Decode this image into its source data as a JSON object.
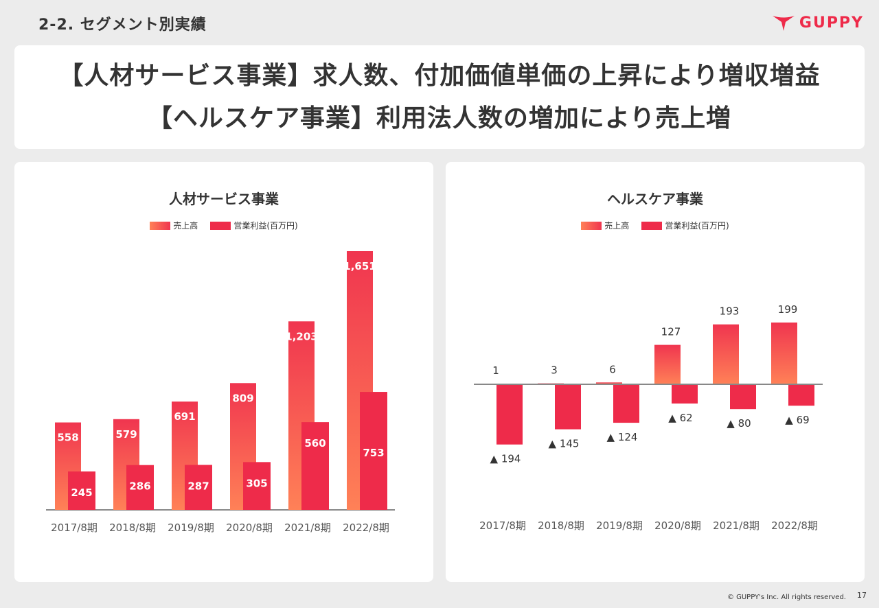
{
  "header": {
    "section_title": "2-2. セグメント別実績",
    "logo_text": "GUPPY"
  },
  "headline": {
    "line1": "【人材サービス事業】求人数、付加価値単価の上昇により増収増益",
    "line2": "【ヘルスケア事業】利用法人数の増加により売上増"
  },
  "colors": {
    "revenue_top": "#f0354f",
    "revenue_bottom": "#ff8157",
    "profit": "#ee2b4a",
    "accent": "#ee2b4a"
  },
  "legend": {
    "revenue": "売上高",
    "profit": "営業利益(百万円)"
  },
  "chart_data": [
    {
      "type": "bar",
      "title": "人材サービス事業",
      "categories": [
        "2017/8期",
        "2018/8期",
        "2019/8期",
        "2020/8期",
        "2021/8期",
        "2022/8期"
      ],
      "series": [
        {
          "name": "売上高",
          "values": [
            558,
            579,
            691,
            809,
            1203,
            1651
          ],
          "labels": [
            "558",
            "579",
            "691",
            "809",
            "1,203",
            "1,651"
          ]
        },
        {
          "name": "営業利益(百万円)",
          "values": [
            245,
            286,
            287,
            305,
            560,
            753
          ],
          "labels": [
            "245",
            "286",
            "287",
            "305",
            "560",
            "753"
          ]
        }
      ],
      "legend_position": "top"
    },
    {
      "type": "bar",
      "title": "ヘルスケア事業",
      "categories": [
        "2017/8期",
        "2018/8期",
        "2019/8期",
        "2020/8期",
        "2021/8期",
        "2022/8期"
      ],
      "series": [
        {
          "name": "売上高",
          "values": [
            1,
            3,
            6,
            127,
            193,
            199
          ],
          "labels": [
            "1",
            "3",
            "6",
            "127",
            "193",
            "199"
          ]
        },
        {
          "name": "営業利益(百万円)",
          "values": [
            -194,
            -145,
            -124,
            -62,
            -80,
            -69
          ],
          "labels": [
            "▲ 194",
            "▲ 145",
            "▲ 124",
            "▲ 62",
            "▲ 80",
            "▲ 69"
          ]
        }
      ],
      "legend_position": "top"
    }
  ],
  "footer": {
    "copyright": "© GUPPY's Inc. All rights reserved.",
    "page": "17"
  }
}
